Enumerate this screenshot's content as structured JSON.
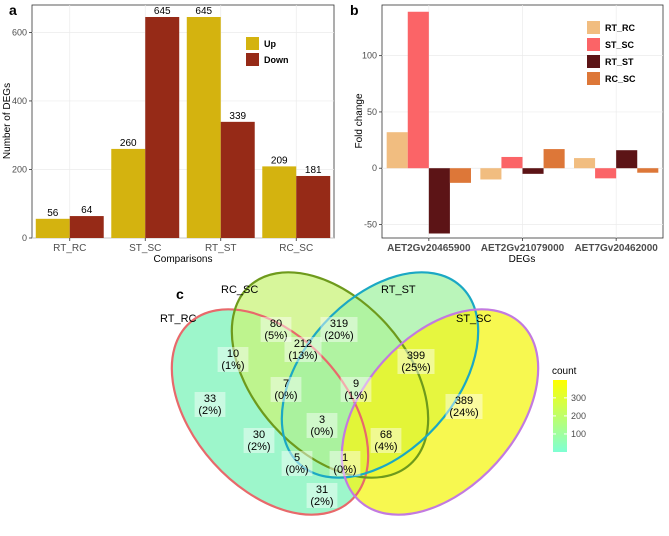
{
  "panels": {
    "a": "a",
    "b": "b",
    "c": "c"
  },
  "chart_data": [
    {
      "type": "bar",
      "panel": "a",
      "xlabel": "Comparisons",
      "ylabel": "Number of DEGs",
      "categories": [
        "RT_RC",
        "ST_SC",
        "RT_ST",
        "RC_SC"
      ],
      "series": [
        {
          "name": "Up",
          "color": "#D4B30F",
          "values": [
            56,
            260,
            645,
            209
          ]
        },
        {
          "name": "Down",
          "color": "#962A17",
          "values": [
            64,
            645,
            339,
            181
          ]
        }
      ],
      "ylim": [
        0,
        680
      ],
      "yticks": [
        0,
        200,
        400,
        600
      ],
      "legend_position": "top-right",
      "grid": true
    },
    {
      "type": "bar",
      "panel": "b",
      "xlabel": "DEGs",
      "ylabel": "Fold change",
      "categories": [
        "AET2Gv20465900",
        "AET2Gv21079000",
        "AET7Gv20462000"
      ],
      "series": [
        {
          "name": "RT_RC",
          "color": "#F1BD80",
          "values": [
            32,
            -10,
            9
          ]
        },
        {
          "name": "ST_SC",
          "color": "#FB6467",
          "values": [
            139,
            10,
            -9
          ]
        },
        {
          "name": "RT_ST",
          "color": "#5C1416",
          "values": [
            -58,
            -5,
            16
          ]
        },
        {
          "name": "RC_SC",
          "color": "#DD7738",
          "values": [
            -13,
            17,
            -4
          ]
        }
      ],
      "ylim": [
        -62,
        145
      ],
      "yticks": [
        -50,
        0,
        50,
        100
      ],
      "legend_position": "top-right",
      "grid": true
    },
    {
      "type": "venn",
      "panel": "c",
      "sets": [
        "RT_RC",
        "RC_SC",
        "RT_ST",
        "ST_SC"
      ],
      "regions": [
        {
          "sets": [
            "RC_SC"
          ],
          "count": "80",
          "pct": "(5%)"
        },
        {
          "sets": [
            "RT_ST"
          ],
          "count": "319",
          "pct": "(20%)"
        },
        {
          "sets": [
            "RC_SC",
            "RT_ST"
          ],
          "count": "212",
          "pct": "(13%)"
        },
        {
          "sets": [
            "RT_RC",
            "RC_SC"
          ],
          "count": "10",
          "pct": "(1%)"
        },
        {
          "sets": [
            "RT_ST",
            "ST_SC"
          ],
          "count": "399",
          "pct": "(25%)"
        },
        {
          "sets": [
            "RT_RC",
            "RC_SC",
            "RT_ST"
          ],
          "count": "7",
          "pct": "(0%)"
        },
        {
          "sets": [
            "RC_SC",
            "RT_ST",
            "ST_SC"
          ],
          "count": "9",
          "pct": "(1%)"
        },
        {
          "sets": [
            "RT_RC"
          ],
          "count": "33",
          "pct": "(2%)"
        },
        {
          "sets": [
            "ST_SC"
          ],
          "count": "389",
          "pct": "(24%)"
        },
        {
          "sets": [
            "RT_RC",
            "RC_SC",
            "RT_ST",
            "ST_SC"
          ],
          "count": "3",
          "pct": "(0%)"
        },
        {
          "sets": [
            "RT_RC",
            "RT_ST"
          ],
          "count": "30",
          "pct": "(2%)"
        },
        {
          "sets": [
            "RC_SC",
            "ST_SC"
          ],
          "count": "68",
          "pct": "(4%)"
        },
        {
          "sets": [
            "RT_RC",
            "RT_ST",
            "ST_SC"
          ],
          "count": "5",
          "pct": "(0%)"
        },
        {
          "sets": [
            "RT_RC",
            "RC_SC",
            "ST_SC"
          ],
          "count": "1",
          "pct": "(0%)"
        },
        {
          "sets": [
            "RT_RC",
            "ST_SC"
          ],
          "count": "31",
          "pct": "(2%)"
        }
      ],
      "legend": {
        "title": "count",
        "ticks": [
          100,
          200,
          300
        ],
        "range": [
          0,
          399
        ],
        "colors": [
          "#7FFFD4",
          "#FFFF00"
        ]
      }
    }
  ]
}
